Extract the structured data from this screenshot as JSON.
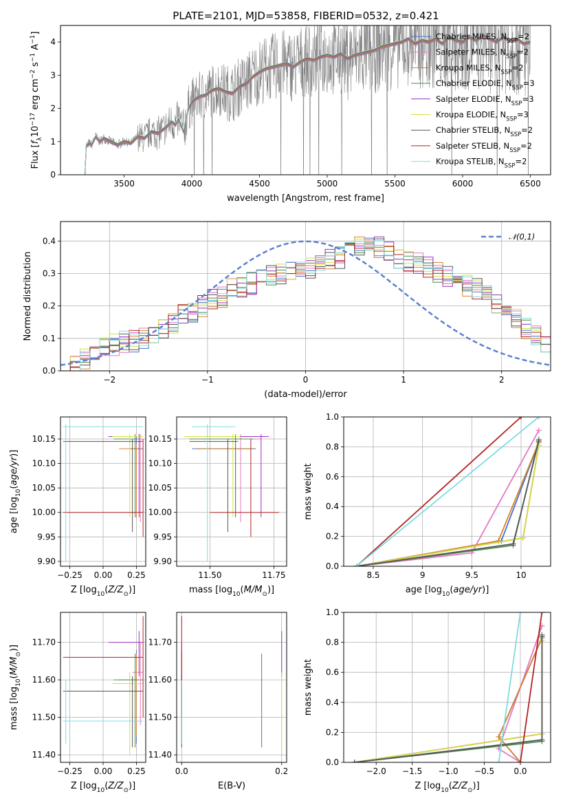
{
  "figure": {
    "title": "PLATE=2101, MJD=53858, FIBERID=0532, z=0.421"
  },
  "models": [
    {
      "name": "Chabrier MILES",
      "nssp": "2",
      "color": "#4a72c4"
    },
    {
      "name": "Salpeter MILES",
      "nssp": "2",
      "color": "#e377c2"
    },
    {
      "name": "Kroupa MILES",
      "nssp": "2",
      "color": "#d6822d"
    },
    {
      "name": "Chabrier ELODIE",
      "nssp": "3",
      "color": "#4d8b4d"
    },
    {
      "name": "Salpeter ELODIE",
      "nssp": "3",
      "color": "#9a2fbd"
    },
    {
      "name": "Kroupa ELODIE",
      "nssp": "3",
      "color": "#d4df3a"
    },
    {
      "name": "Chabrier STELIB",
      "nssp": "2",
      "color": "#555555"
    },
    {
      "name": "Salpeter STELIB",
      "nssp": "2",
      "color": "#b22222"
    },
    {
      "name": "Kroupa STELIB",
      "nssp": "2",
      "color": "#7fdbe0"
    }
  ],
  "chart_data": [
    {
      "id": "spectrum",
      "type": "line",
      "xlabel": "wavelength [Angstrom, rest frame]",
      "ylabel": "Flux [f_λ 10^-17 erg cm^-2 s^-1 A^-1]",
      "xlim": [
        3030,
        6650
      ],
      "ylim": [
        0,
        4.5
      ],
      "xticks": [
        3500,
        4000,
        4500,
        5000,
        5500,
        6000,
        6500
      ],
      "yticks": [
        0,
        1,
        2,
        3,
        4
      ],
      "legend": "top-right",
      "data_color": "#808080",
      "model_x": [
        3210,
        3220,
        3240,
        3260,
        3290,
        3320,
        3350,
        3400,
        3450,
        3500,
        3550,
        3600,
        3650,
        3700,
        3750,
        3800,
        3850,
        3880,
        3900,
        3940,
        3970,
        4000,
        4050,
        4100,
        4150,
        4200,
        4250,
        4300,
        4350,
        4400,
        4450,
        4500,
        4550,
        4600,
        4650,
        4700,
        4750,
        4800,
        4850,
        4900,
        4950,
        5000,
        5050,
        5100,
        5150,
        5200,
        5250,
        5300,
        5350,
        5400,
        5450,
        5500,
        5550,
        5600,
        5650,
        5700,
        5750,
        5800,
        5850,
        5900,
        5950,
        6000,
        6050,
        6100,
        6150,
        6200,
        6250,
        6300,
        6350,
        6400,
        6450,
        6500
      ],
      "model_y": [
        0.0,
        0.85,
        0.95,
        0.9,
        1.15,
        1.0,
        1.1,
        1.0,
        0.9,
        1.0,
        0.95,
        1.15,
        1.1,
        1.3,
        1.25,
        1.4,
        1.6,
        1.5,
        1.7,
        1.3,
        1.95,
        2.2,
        2.35,
        2.4,
        2.55,
        2.6,
        2.5,
        2.45,
        2.65,
        2.75,
        2.95,
        3.1,
        3.2,
        3.25,
        3.3,
        3.35,
        3.25,
        3.4,
        3.5,
        3.45,
        3.55,
        3.6,
        3.55,
        3.65,
        3.5,
        3.6,
        3.65,
        3.7,
        3.75,
        3.85,
        3.9,
        3.95,
        4.0,
        4.1,
        3.95,
        4.05,
        4.0,
        4.1,
        3.95,
        4.15,
        4.05,
        4.0,
        4.15,
        4.05,
        4.2,
        4.1,
        4.0,
        4.15,
        4.05,
        4.1,
        3.95,
        4.0
      ]
    },
    {
      "id": "residuals",
      "type": "line",
      "xlabel": "(data-model)/error",
      "ylabel": "Normed distribution",
      "xlim": [
        -2.5,
        2.5
      ],
      "ylim": [
        0,
        0.46
      ],
      "xticks": [
        -2,
        -1,
        0,
        1,
        2
      ],
      "yticks": [
        0.0,
        0.1,
        0.2,
        0.3,
        0.4
      ],
      "grid": true,
      "legend": "top-right",
      "reference": {
        "name": "𝒩(0,1)",
        "color": "#5b80d0",
        "mu": 0,
        "sigma": 1
      },
      "bin_width": 0.1,
      "bin_start": -2.5,
      "hist_values": [
        0.02,
        0.02,
        0.04,
        0.06,
        0.07,
        0.08,
        0.09,
        0.09,
        0.1,
        0.1,
        0.13,
        0.15,
        0.17,
        0.18,
        0.2,
        0.22,
        0.23,
        0.25,
        0.26,
        0.27,
        0.28,
        0.29,
        0.3,
        0.31,
        0.31,
        0.32,
        0.33,
        0.34,
        0.35,
        0.37,
        0.39,
        0.4,
        0.38,
        0.37,
        0.35,
        0.34,
        0.33,
        0.32,
        0.3,
        0.29,
        0.28,
        0.26,
        0.25,
        0.23,
        0.2,
        0.19,
        0.16,
        0.13,
        0.11,
        0.08
      ]
    },
    {
      "id": "age-vs-Z",
      "type": "scatter",
      "xlabel": "Z [log10(Z/Z⊙)]",
      "ylabel": "age [log10(age/yr)]",
      "xlim": [
        -0.32,
        0.32
      ],
      "ylim": [
        9.89,
        10.195
      ],
      "xticks": [
        -0.25,
        0.0,
        0.25
      ],
      "xtick_labels": [
        "−0.25",
        "0.00",
        "0.25"
      ],
      "yticks": [
        9.9,
        9.95,
        10.0,
        10.05,
        10.1,
        10.15
      ],
      "grid": true
    },
    {
      "id": "age-vs-mass",
      "type": "scatter",
      "xlabel": "mass [log10(M/M⊙)]",
      "ylabel": "",
      "xlim": [
        11.37,
        11.8
      ],
      "ylim": [
        9.89,
        10.195
      ],
      "xticks": [
        11.5,
        11.75
      ],
      "xtick_labels": [
        "11.50",
        "11.75"
      ],
      "yticks": [
        9.9,
        9.95,
        10.0,
        10.05,
        10.1,
        10.15
      ],
      "grid": true
    },
    {
      "id": "weight-vs-age",
      "type": "line",
      "xlabel": "age [log10(age/yr)]",
      "ylabel": "mass weight",
      "xlim": [
        8.2,
        10.3
      ],
      "ylim": [
        0,
        1.0
      ],
      "xticks": [
        8.5,
        9.0,
        9.5,
        10.0
      ],
      "yticks": [
        0.0,
        0.2,
        0.4,
        0.6,
        0.8,
        1.0
      ],
      "grid": true
    },
    {
      "id": "mass-vs-Z",
      "type": "scatter",
      "xlabel": "Z [log10(Z/Z⊙)]",
      "ylabel": "mass [log10(M/M⊙)]",
      "xlim": [
        -0.32,
        0.32
      ],
      "ylim": [
        11.38,
        11.78
      ],
      "xticks": [
        -0.25,
        0.0,
        0.25
      ],
      "xtick_labels": [
        "−0.25",
        "0.00",
        "0.25"
      ],
      "yticks": [
        11.4,
        11.5,
        11.6,
        11.7
      ],
      "grid": true
    },
    {
      "id": "mass-vs-ebv",
      "type": "scatter",
      "xlabel": "E(B-V)",
      "ylabel": "",
      "xlim": [
        -0.01,
        0.21
      ],
      "ylim": [
        11.38,
        11.78
      ],
      "xticks": [
        0.0,
        0.2
      ],
      "xtick_labels": [
        "0.0",
        "0.2"
      ],
      "yticks": [
        11.4,
        11.5,
        11.6,
        11.7
      ],
      "grid": true
    },
    {
      "id": "weight-vs-Z",
      "type": "line",
      "xlabel": "Z [log10(Z/Z⊙)]",
      "ylabel": "mass weight",
      "xlim": [
        -2.45,
        0.42
      ],
      "ylim": [
        0,
        1.0
      ],
      "xticks": [
        -2.0,
        -1.5,
        -1.0,
        -0.5,
        0.0
      ],
      "xtick_labels": [
        "−2.0",
        "−1.5",
        "−1.0",
        "−0.5",
        "0.0"
      ],
      "yticks": [
        0.0,
        0.2,
        0.4,
        0.6,
        0.8,
        1.0
      ],
      "grid": true
    }
  ],
  "fits": [
    {
      "model": 0,
      "Z": 0.25,
      "Zlo": 0.2,
      "Zhi": 0.3,
      "age": 10.13,
      "ageLo": 9.99,
      "ageHi": 10.155,
      "mass": 11.6,
      "massLo": 11.43,
      "massHi": 11.68,
      "ebv": 0.0,
      "ages": [
        8.33,
        9.8,
        10.18
      ],
      "weights": [
        0.0,
        0.17,
        0.83
      ],
      "Zs": [
        0.0,
        -0.3,
        0.3
      ]
    },
    {
      "model": 1,
      "Z": 0.28,
      "Zlo": 0.22,
      "Zhi": 0.3,
      "age": 10.15,
      "ageLo": 9.98,
      "ageHi": 10.16,
      "mass": 11.62,
      "massLo": 11.48,
      "massHi": 11.7,
      "ebv": 0.0,
      "ages": [
        8.33,
        9.5,
        10.18
      ],
      "weights": [
        0.0,
        0.09,
        0.91
      ],
      "Zs": [
        0.0,
        -0.3,
        0.3
      ]
    },
    {
      "model": 2,
      "Z": 0.25,
      "Zlo": 0.12,
      "Zhi": 0.28,
      "age": 10.13,
      "ageLo": 9.99,
      "ageHi": 10.14,
      "mass": 11.6,
      "massLo": 11.45,
      "massHi": 11.67,
      "ebv": 0.0,
      "ages": [
        8.33,
        9.77,
        10.18
      ],
      "weights": [
        0.0,
        0.17,
        0.83
      ],
      "Zs": [
        0.0,
        -0.3,
        0.3
      ]
    },
    {
      "model": 3,
      "Z": 0.24,
      "Zlo": 0.08,
      "Zhi": 0.26,
      "age": 10.15,
      "ageLo": 9.99,
      "ageHi": 10.16,
      "mass": 11.6,
      "massLo": 11.42,
      "massHi": 11.67,
      "ebv": 0.16,
      "ages": [
        8.33,
        9.92,
        10.18
      ],
      "weights": [
        0.0,
        0.14,
        0.85
      ],
      "Zs": [
        -2.3,
        0.3,
        0.3
      ]
    },
    {
      "model": 4,
      "Z": 0.27,
      "Zlo": 0.04,
      "Zhi": 0.3,
      "age": 10.155,
      "ageLo": 9.99,
      "ageHi": 10.16,
      "mass": 11.7,
      "massLo": 11.61,
      "massHi": 11.73,
      "ebv": 0.2,
      "ages": [
        8.33,
        10.02,
        10.18
      ],
      "weights": [
        0.0,
        0.19,
        0.81
      ],
      "Zs": [
        -2.3,
        0.3,
        0.3
      ]
    },
    {
      "model": 5,
      "Z": 0.2,
      "Zlo": 0.07,
      "Zhi": 0.3,
      "age": 10.155,
      "ageLo": 9.99,
      "ageHi": 10.16,
      "mass": 11.59,
      "massLo": 11.4,
      "massHi": 11.62,
      "ebv": 0.2,
      "ages": [
        8.33,
        10.02,
        10.18
      ],
      "weights": [
        0.0,
        0.19,
        0.81
      ],
      "Zs": [
        -2.3,
        0.3,
        0.3
      ]
    },
    {
      "model": 6,
      "Z": 0.22,
      "Zlo": -0.3,
      "Zhi": 0.3,
      "age": 10.145,
      "ageLo": 9.96,
      "ageHi": 10.15,
      "mass": 11.57,
      "massLo": 11.42,
      "massHi": 11.61,
      "ebv": 0.0,
      "ages": [
        8.33,
        9.92,
        10.18
      ],
      "weights": [
        0.0,
        0.15,
        0.84
      ],
      "Zs": [
        -2.3,
        0.3,
        0.3
      ]
    },
    {
      "model": 7,
      "Z": 0.3,
      "Zlo": -0.3,
      "Zhi": 0.3,
      "age": 10.0,
      "ageLo": 9.95,
      "ageHi": 10.15,
      "mass": 11.66,
      "massLo": 11.5,
      "massHi": 11.77,
      "ebv": 0.0,
      "ages": [
        8.33,
        10.0
      ],
      "weights": [
        0.0,
        1.0
      ],
      "Zs": [
        0.0,
        0.3
      ]
    },
    {
      "model": 8,
      "Z": -0.28,
      "Zlo": -0.3,
      "Zhi": 0.3,
      "age": 10.175,
      "ageLo": 9.9,
      "ageHi": 10.18,
      "mass": 11.49,
      "massLo": 11.43,
      "massHi": 11.6,
      "ebv": 0.0,
      "ages": [
        8.33,
        10.18
      ],
      "weights": [
        0.0,
        1.0
      ],
      "Zs": [
        -0.3,
        0.0
      ]
    }
  ]
}
